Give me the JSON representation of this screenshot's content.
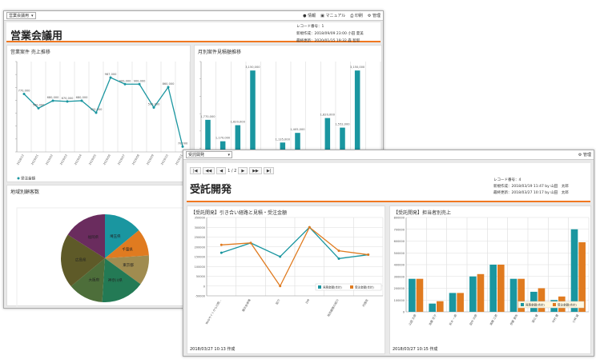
{
  "back": {
    "dropdown": "営業会議用",
    "toolbar": [
      "情報",
      "マニュアル",
      "印刷",
      "管理"
    ],
    "title": "営業会議用",
    "record": "レコード番号：1",
    "created": "新規作成：2018/09/09 23:00 小田 夏美",
    "updated": "最終更新：2020/01/15 19:32 森 智郎",
    "panel1_title": "営業案件 売上推移",
    "panel2_title": "月別案件見積額推移",
    "panel3_title": "地域別顧客数"
  },
  "front": {
    "dropdown": "受託開発",
    "admin": "管理",
    "page": "1 / 2",
    "title": "受託開発",
    "record": "レコード番号：4",
    "created": "新規作成：2018/03/19 11:47 by 山田　太郎",
    "updated": "最終更新：2018/03/27 10:17 by 山田　太郎",
    "panel1_title": "【受託開発】引き合い経路と見積・受注金額",
    "panel2_title": "【受託開発】担当者別売上",
    "panel1_footer": "2018/03/27 10:13 作成",
    "panel2_footer": "2018/03/27 10:15 作成"
  },
  "colors": {
    "teal": "#1a96a0",
    "orange": "#e07b20",
    "accent": "#f07820"
  },
  "chart_data": [
    {
      "type": "line",
      "title": "営業案件 売上推移",
      "categories": [
        "2018/12",
        "2019/01",
        "2019/02",
        "2019/03",
        "2019/04",
        "2019/05",
        "2019/06",
        "2019/07",
        "2019/08",
        "2019/09",
        "2019/10",
        "2019/11"
      ],
      "series": [
        {
          "name": "受注金額",
          "values": [
            770000,
            580000,
            680000,
            670000,
            680000,
            520000,
            987000,
            900000,
            900000,
            590000,
            860000,
            70000
          ],
          "labels": [
            "770,000",
            "580,000",
            "680,000",
            "670,000",
            "680,000",
            "520,000",
            "987,000",
            "900,000",
            "900,000",
            "590,000",
            "860,000",
            "70,000"
          ]
        }
      ],
      "ylim": [
        0,
        1200000
      ]
    },
    {
      "type": "bar",
      "title": "月別案件見積額推移",
      "values": [
        1770000,
        1170000,
        1620000,
        3150000,
        765000,
        1135000,
        1405000,
        558000,
        1820000,
        1552000,
        3150000,
        75000
      ],
      "labels": [
        "1,770,000",
        "1,170,000",
        "1,620,000",
        "3,150,000",
        "765,000",
        "1,135,000",
        "1,405,000",
        "558,000",
        "1,820,000",
        "1,552,000",
        "3,150,000",
        "75,000"
      ],
      "ylim": [
        0,
        3400000
      ]
    },
    {
      "type": "pie",
      "title": "地域別顧客数",
      "categories": [
        "埼玉県",
        "千葉県",
        "東京都",
        "神奈川県",
        "大阪府",
        "広島県",
        "福岡県"
      ],
      "values": [
        14,
        10,
        11,
        16,
        13,
        20,
        16
      ],
      "colors": [
        "#1a96a0",
        "#e07b20",
        "#a08c50",
        "#237a55",
        "#4d6e3a",
        "#5e5a28",
        "#6a2c5e"
      ]
    },
    {
      "type": "line",
      "title": "【受託開発】引き合い経路と見積・受注金額",
      "categories": [
        "Webサイトからの問…",
        "展示会来場",
        "紹介",
        "DM",
        "既存顧客の紹介",
        "代理店"
      ],
      "series": [
        {
          "name": "見積金額(合計)",
          "values": [
            170000,
            220000,
            150000,
            300000,
            140000,
            160000
          ]
        },
        {
          "name": "受注金額(合計)",
          "values": [
            210000,
            220000,
            0,
            300000,
            180000,
            160000
          ]
        }
      ],
      "yticks": [
        "350000",
        "300000",
        "250000",
        "200000",
        "150000",
        "100000",
        "50000",
        "0",
        "-50000"
      ],
      "ylim": [
        -50000,
        350000
      ]
    },
    {
      "type": "bar",
      "title": "【受託開発】担当者別売上",
      "categories": [
        "山田 太郎",
        "佐藤 花子",
        "鈴木 一郎",
        "田中 次郎",
        "高橋 三郎",
        "伊藤 美咲",
        "渡辺 健",
        "中村 優",
        "小林 誠"
      ],
      "series": [
        {
          "name": "見積金額(合計)",
          "values": [
            280000,
            70000,
            160000,
            300000,
            400000,
            280000,
            170000,
            100000,
            700000
          ]
        },
        {
          "name": "受注金額(合計)",
          "values": [
            280000,
            90000,
            160000,
            320000,
            400000,
            280000,
            200000,
            130000,
            590000
          ]
        }
      ],
      "yticks": [
        "800000",
        "700000",
        "600000",
        "500000",
        "400000",
        "300000",
        "200000",
        "100000",
        "0"
      ],
      "ylim": [
        0,
        800000
      ]
    }
  ]
}
